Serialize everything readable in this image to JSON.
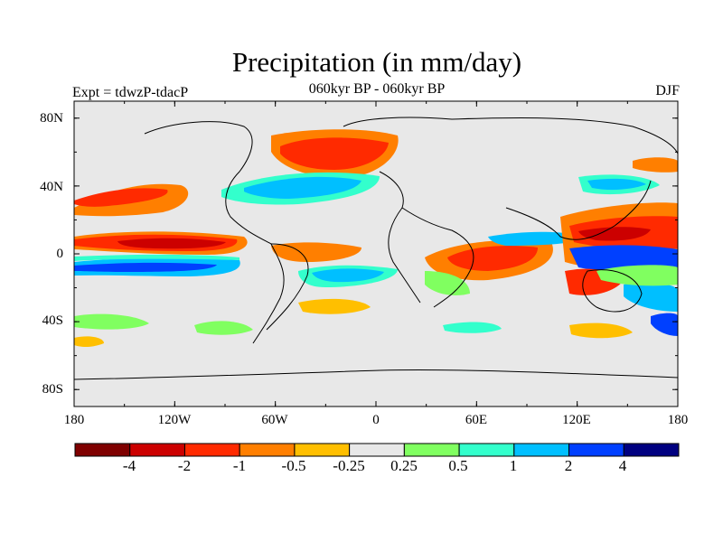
{
  "title": "Precipitation (in mm/day)",
  "subtitle": "060kyr BP - 060kyr BP",
  "left_string": "Expt = tdwzP-tdacP",
  "right_string": "DJF",
  "map": {
    "background_color": "#e8e8e8",
    "coastline_color": "#000000",
    "lat_labels": [
      "80N",
      "40N",
      "0",
      "40S",
      "80S"
    ],
    "lon_labels": [
      "180",
      "120W",
      "60W",
      "0",
      "60E",
      "120E",
      "180"
    ]
  },
  "colorbar": {
    "colors": [
      "#7f0000",
      "#cc0000",
      "#ff2a00",
      "#ff7f00",
      "#ffbf00",
      "#e8e8e8",
      "#80ff60",
      "#33ffcc",
      "#00bfff",
      "#0040ff",
      "#000080"
    ],
    "labels": [
      "-4",
      "-2",
      "-1",
      "-0.5",
      "-0.25",
      "0.25",
      "0.5",
      "1",
      "2",
      "4"
    ]
  }
}
